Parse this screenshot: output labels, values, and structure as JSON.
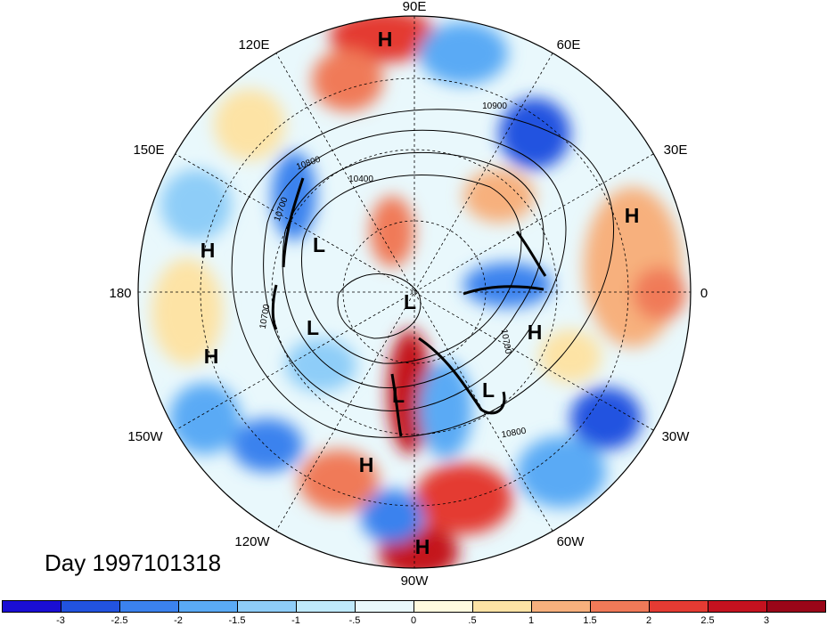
{
  "title": "Day 1997101318",
  "longitude_labels": [
    "90E",
    "60E",
    "30E",
    "0",
    "30W",
    "60W",
    "90W",
    "120W",
    "150W",
    "180",
    "150E",
    "120E"
  ],
  "pressure_centers": [
    {
      "name": "high-center",
      "label": "H"
    },
    {
      "name": "high-center",
      "label": "H"
    },
    {
      "name": "high-center",
      "label": "H"
    },
    {
      "name": "high-center",
      "label": "H"
    },
    {
      "name": "high-center",
      "label": "H"
    },
    {
      "name": "high-center",
      "label": "H"
    },
    {
      "name": "high-center",
      "label": "H"
    },
    {
      "name": "low-center",
      "label": "L"
    },
    {
      "name": "low-center",
      "label": "L"
    },
    {
      "name": "low-center",
      "label": "L"
    },
    {
      "name": "low-center",
      "label": "L"
    },
    {
      "name": "low-center",
      "label": "L"
    }
  ],
  "contour_labels": [
    "10900",
    "10800",
    "10400",
    "10700",
    "10700",
    "10700",
    "10800"
  ],
  "colorbar": {
    "ticks": [
      "-3",
      "-2.5",
      "-2",
      "-1.5",
      "-1",
      "-.5",
      "0",
      ".5",
      "1",
      "1.5",
      "2",
      "2.5",
      "3"
    ],
    "colors": [
      "#1a0ed4",
      "#2253e0",
      "#3b82ee",
      "#5aaaf5",
      "#8ecdf8",
      "#bfe9fb",
      "#e9f8fc",
      "#fffadf",
      "#fde3a5",
      "#f7b07d",
      "#f07a58",
      "#e43b33",
      "#c4121f",
      "#9a0618"
    ]
  }
}
